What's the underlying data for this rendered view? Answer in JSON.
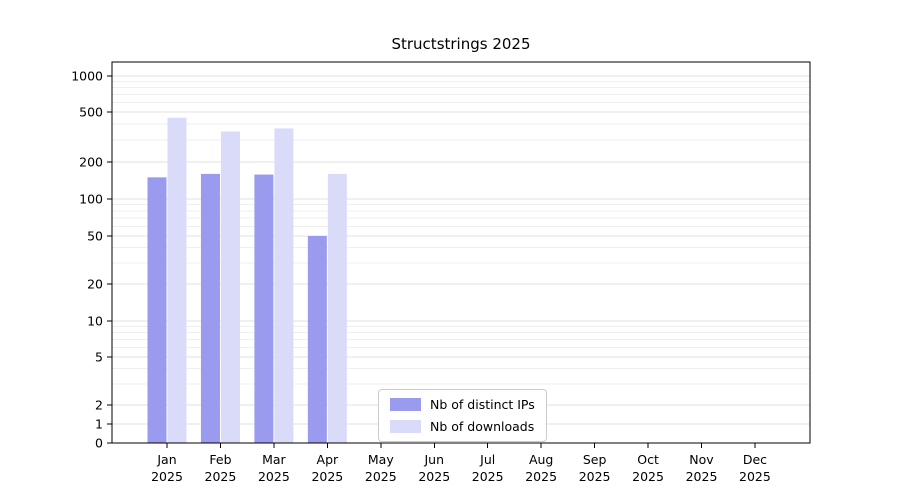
{
  "chart_data": {
    "type": "bar",
    "title": "Structstrings 2025",
    "categories": [
      "Jan",
      "Feb",
      "Mar",
      "Apr",
      "May",
      "Jun",
      "Jul",
      "Aug",
      "Sep",
      "Oct",
      "Nov",
      "Dec"
    ],
    "x_sublabel": "2025",
    "xlabel": "",
    "ylabel": "",
    "yscale": "symlog",
    "yticks": [
      0,
      1,
      2,
      5,
      10,
      20,
      50,
      100,
      200,
      500,
      1000
    ],
    "ylim": [
      0,
      1200
    ],
    "grid": "horizontal major and minor, light gray",
    "legend_position": "lower center",
    "series": [
      {
        "name": "Nb of distinct IPs",
        "color": "#9a9aef",
        "values": [
          150,
          160,
          158,
          50,
          0,
          0,
          0,
          0,
          0,
          0,
          0,
          0
        ]
      },
      {
        "name": "Nb of downloads",
        "color": "#dadaf9",
        "values": [
          450,
          350,
          370,
          160,
          0,
          0,
          0,
          0,
          0,
          0,
          0,
          0
        ]
      }
    ]
  },
  "legend": {
    "items": [
      {
        "label": "Nb of distinct IPs",
        "color": "#9a9aef"
      },
      {
        "label": "Nb of downloads",
        "color": "#dadaf9"
      }
    ]
  }
}
